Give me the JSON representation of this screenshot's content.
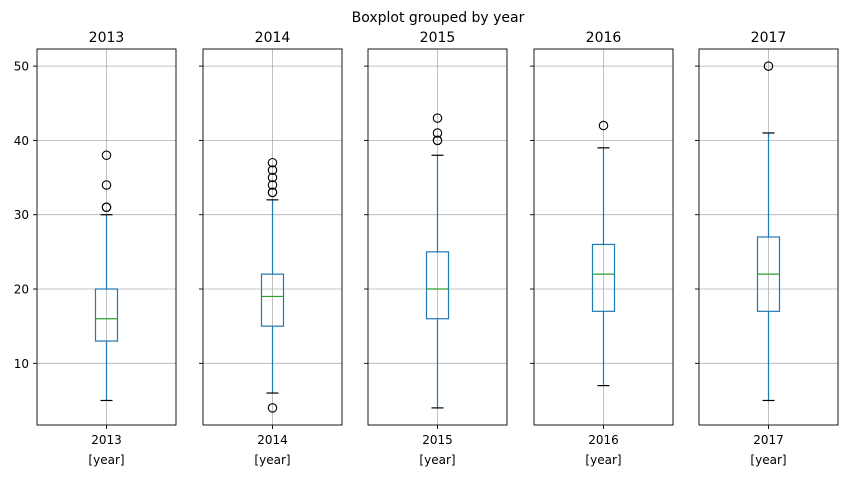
{
  "chart_data": {
    "type": "boxplot",
    "title": "Boxplot grouped by year",
    "ylim": [
      1.7,
      52.3
    ],
    "yticks": [
      10,
      20,
      30,
      40,
      50
    ],
    "grid": true,
    "shared_y": true,
    "panels": [
      {
        "title": "2013",
        "xtick": "2013",
        "xlabel": "[year]",
        "box": {
          "whisker_low": 5,
          "q1": 13,
          "median": 16,
          "q3": 20,
          "whisker_high": 30
        },
        "outliers": [
          31,
          31,
          34,
          38
        ]
      },
      {
        "title": "2014",
        "xtick": "2014",
        "xlabel": "[year]",
        "box": {
          "whisker_low": 6,
          "q1": 15,
          "median": 19,
          "q3": 22,
          "whisker_high": 32
        },
        "outliers": [
          4,
          33,
          33,
          34,
          35,
          36,
          37
        ]
      },
      {
        "title": "2015",
        "xtick": "2015",
        "xlabel": "[year]",
        "box": {
          "whisker_low": 4,
          "q1": 16,
          "median": 20,
          "q3": 25,
          "whisker_high": 38
        },
        "outliers": [
          40,
          40,
          41,
          43
        ]
      },
      {
        "title": "2016",
        "xtick": "2016",
        "xlabel": "[year]",
        "box": {
          "whisker_low": 7,
          "q1": 17,
          "median": 22,
          "q3": 26,
          "whisker_high": 39
        },
        "outliers": [
          42
        ]
      },
      {
        "title": "2017",
        "xtick": "2017",
        "xlabel": "[year]",
        "box": {
          "whisker_low": 5,
          "q1": 17,
          "median": 22,
          "q3": 27,
          "whisker_high": 41
        },
        "outliers": [
          50
        ]
      }
    ],
    "colors": {
      "box": "#1f77b4",
      "median": "#2ca02c",
      "whisker_cap": "#000000",
      "outlier": "#000000",
      "grid": "#b0b0b0",
      "spine": "#000000"
    }
  }
}
